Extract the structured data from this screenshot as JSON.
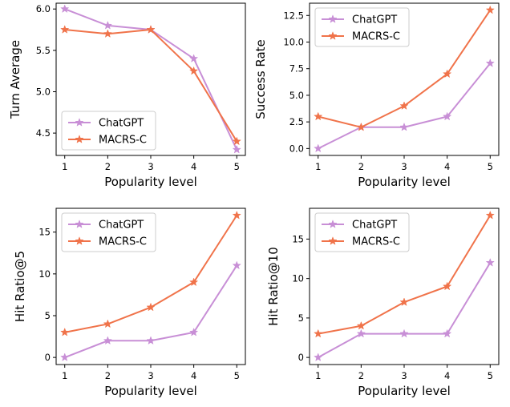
{
  "chart_data": [
    {
      "type": "line",
      "xlabel": "Popularity level",
      "ylabel": "Turn Average",
      "x": [
        1,
        2,
        3,
        4,
        5
      ],
      "xticks": [
        "1",
        "2",
        "3",
        "4",
        "5"
      ],
      "ylim": [
        4.23,
        6.07
      ],
      "yticks": [
        "4.5",
        "5.0",
        "5.5",
        "6.0"
      ],
      "ytick_values": [
        4.5,
        5.0,
        5.5,
        6.0
      ],
      "legend_position": "lower-left",
      "series": [
        {
          "name": "ChatGPT",
          "values": [
            6.0,
            5.8,
            5.75,
            5.4,
            4.3
          ]
        },
        {
          "name": "MACRS-C",
          "values": [
            5.75,
            5.7,
            5.75,
            5.25,
            4.4
          ]
        }
      ]
    },
    {
      "type": "line",
      "xlabel": "Popularity level",
      "ylabel": "Success Rate",
      "x": [
        1,
        2,
        3,
        4,
        5
      ],
      "xticks": [
        "1",
        "2",
        "3",
        "4",
        "5"
      ],
      "ylim": [
        -0.65,
        13.65
      ],
      "yticks": [
        "0.0",
        "2.5",
        "5.0",
        "7.5",
        "10.0",
        "12.5"
      ],
      "ytick_values": [
        0,
        2.5,
        5,
        7.5,
        10,
        12.5
      ],
      "legend_position": "upper-left",
      "series": [
        {
          "name": "ChatGPT",
          "values": [
            0,
            2,
            2,
            3,
            8
          ]
        },
        {
          "name": "MACRS-C",
          "values": [
            3,
            2,
            4,
            7,
            13
          ]
        }
      ]
    },
    {
      "type": "line",
      "xlabel": "Popularity level",
      "ylabel": "Hit Ratio@5",
      "x": [
        1,
        2,
        3,
        4,
        5
      ],
      "xticks": [
        "1",
        "2",
        "3",
        "4",
        "5"
      ],
      "ylim": [
        -0.85,
        17.85
      ],
      "yticks": [
        "0",
        "5",
        "10",
        "15"
      ],
      "ytick_values": [
        0,
        5,
        10,
        15
      ],
      "legend_position": "upper-left",
      "series": [
        {
          "name": "ChatGPT",
          "values": [
            0,
            2,
            2,
            3,
            11
          ]
        },
        {
          "name": "MACRS-C",
          "values": [
            3,
            4,
            6,
            9,
            17
          ]
        }
      ]
    },
    {
      "type": "line",
      "xlabel": "Popularity level",
      "ylabel": "Hit Ratio@10",
      "x": [
        1,
        2,
        3,
        4,
        5
      ],
      "xticks": [
        "1",
        "2",
        "3",
        "4",
        "5"
      ],
      "ylim": [
        -0.9,
        18.9
      ],
      "yticks": [
        "0",
        "5",
        "10",
        "15"
      ],
      "ytick_values": [
        0,
        5,
        10,
        15
      ],
      "legend_position": "upper-left",
      "series": [
        {
          "name": "ChatGPT",
          "values": [
            0,
            3,
            3,
            3,
            12
          ]
        },
        {
          "name": "MACRS-C",
          "values": [
            3,
            4,
            7,
            9,
            18
          ]
        }
      ]
    }
  ],
  "colors": {
    "ChatGPT": "#c88fd6",
    "MACRS-C": "#f0734a"
  }
}
